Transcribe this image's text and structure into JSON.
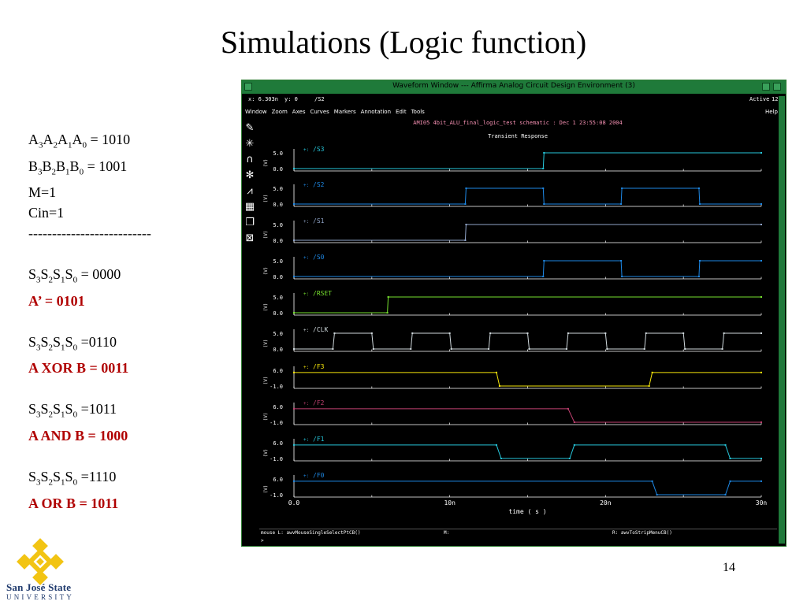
{
  "slide": {
    "title": "Simulations (Logic function)",
    "page_number": "14",
    "inputs": {
      "a_line": {
        "letters": [
          "A",
          "A",
          "A",
          "A"
        ],
        "subs": [
          "3",
          "2",
          "1",
          "0"
        ],
        "value": "= 1010"
      },
      "b_line": {
        "letters": [
          "B",
          "B",
          "B",
          "B"
        ],
        "subs": [
          "3",
          "2",
          "1",
          "0"
        ],
        "value": "= 1001"
      },
      "m_line": "M=1",
      "cin_line": "Cin=1",
      "divider": "--------------------------"
    },
    "cases": [
      {
        "s_subs": [
          "3",
          "2",
          "1",
          "0"
        ],
        "s_value": "= 0000",
        "result": "A’ = 0101"
      },
      {
        "s_subs": [
          "3",
          "2",
          "1",
          "0"
        ],
        "s_value": "=0110",
        "result": "A XOR B = 0011"
      },
      {
        "s_subs": [
          "3",
          "2",
          "1",
          "0"
        ],
        "s_value": "=1011",
        "result": "A AND B = 1000"
      },
      {
        "s_subs": [
          "3",
          "2",
          "1",
          "0"
        ],
        "s_value": "=1110",
        "result": "A OR B = 1011"
      }
    ],
    "logo": {
      "line1": "San José State",
      "line2": "UNIVERSITY",
      "color": "#f2c413"
    }
  },
  "window": {
    "title": "Waveform Window --- Affirma Analog Circuit Design Environment (3)",
    "info_x": "x: 6.303n",
    "info_y": "y: 0",
    "info_signal": "/S2",
    "active_label": "Active",
    "active_num": "12",
    "menu": [
      "Window",
      "Zoom",
      "Axes",
      "Curves",
      "Markers",
      "Annotation",
      "Edit",
      "Tools"
    ],
    "help": "Help",
    "tools": [
      "pen-icon",
      "crosshair-icon",
      "headphones-icon",
      "sparkle-icon",
      "waveform-icon",
      "grid-icon",
      "layers-icon",
      "delete-icon"
    ],
    "plot_title": "AMI05 4bit_ALU_final_logic_test schematic : Dec  1 23:55:08 2004",
    "plot_subtitle": "Transient Response",
    "status_left": "mouse L: awvMouseSingleSelectPtCB()",
    "status_mid": "M:",
    "status_right": "R: awvToStripMenuCB()",
    "prompt": ">",
    "colors": {
      "titlebar": "#1f7a3a",
      "bg": "#000000",
      "axis": "#ffffff"
    }
  },
  "chart_data": {
    "type": "line",
    "xlabel": "time ( s )",
    "x_ticks": [
      "0.0",
      "10n",
      "20n",
      "30n"
    ],
    "xlim": [
      0,
      30
    ],
    "x_unit": "ns",
    "series": [
      {
        "name": "/S3",
        "marker": "+:",
        "color": "#26c6da",
        "ylabels": [
          "5.0",
          "0.0"
        ],
        "ylim": [
          0,
          5
        ],
        "y_unit": "(V)",
        "points": [
          [
            0,
            0
          ],
          [
            16,
            0
          ],
          [
            16.05,
            5
          ],
          [
            30,
            5
          ]
        ]
      },
      {
        "name": "/S2",
        "marker": "+:",
        "color": "#1e88e5",
        "ylabels": [
          "5.0",
          "0.0"
        ],
        "ylim": [
          0,
          5
        ],
        "y_unit": "(V)",
        "points": [
          [
            0,
            0
          ],
          [
            11,
            0
          ],
          [
            11.05,
            5
          ],
          [
            16,
            5
          ],
          [
            16.05,
            0
          ],
          [
            21,
            0
          ],
          [
            21.05,
            5
          ],
          [
            26,
            5
          ],
          [
            26.05,
            0
          ],
          [
            30,
            0
          ]
        ]
      },
      {
        "name": "/S1",
        "marker": "+:",
        "color": "#90a4c8",
        "ylabels": [
          "5.0",
          "0.0"
        ],
        "ylim": [
          0,
          5
        ],
        "y_unit": "(V)",
        "points": [
          [
            0,
            0
          ],
          [
            11,
            0
          ],
          [
            11.05,
            5
          ],
          [
            30,
            5
          ]
        ]
      },
      {
        "name": "/S0",
        "marker": "+:",
        "color": "#1e88e5",
        "ylabels": [
          "5.0",
          "0.0"
        ],
        "ylim": [
          0,
          5
        ],
        "y_unit": "(V)",
        "points": [
          [
            0,
            0
          ],
          [
            16,
            0
          ],
          [
            16.05,
            5
          ],
          [
            21,
            5
          ],
          [
            21.05,
            0
          ],
          [
            26,
            0
          ],
          [
            26.05,
            5
          ],
          [
            30,
            5
          ]
        ]
      },
      {
        "name": "/RSET",
        "marker": "+:",
        "color": "#76e02f",
        "ylabels": [
          "5.0",
          "0.0"
        ],
        "ylim": [
          0,
          5
        ],
        "y_unit": "(V)",
        "points": [
          [
            0,
            0
          ],
          [
            6,
            0
          ],
          [
            6.05,
            5
          ],
          [
            30,
            5
          ]
        ]
      },
      {
        "name": "/CLK",
        "marker": "+:",
        "color": "#cfd8dc",
        "ylabels": [
          "5.0",
          "0.0"
        ],
        "ylim": [
          0,
          5
        ],
        "y_unit": "(V)",
        "points": [
          [
            0,
            0
          ],
          [
            2.5,
            0
          ],
          [
            2.6,
            5
          ],
          [
            5,
            5
          ],
          [
            5.1,
            0
          ],
          [
            7.5,
            0
          ],
          [
            7.6,
            5
          ],
          [
            10,
            5
          ],
          [
            10.1,
            0
          ],
          [
            12.5,
            0
          ],
          [
            12.6,
            5
          ],
          [
            15,
            5
          ],
          [
            15.1,
            0
          ],
          [
            17.5,
            0
          ],
          [
            17.6,
            5
          ],
          [
            20,
            5
          ],
          [
            20.1,
            0
          ],
          [
            22.5,
            0
          ],
          [
            22.6,
            5
          ],
          [
            25,
            5
          ],
          [
            25.1,
            0
          ],
          [
            27.5,
            0
          ],
          [
            27.6,
            5
          ],
          [
            30,
            5
          ]
        ]
      },
      {
        "name": "/F3",
        "marker": "+:",
        "color": "#f5e50a",
        "ylabels": [
          "6.0",
          "-1.0"
        ],
        "ylim": [
          -1,
          6
        ],
        "y_unit": "(V)",
        "points": [
          [
            0,
            5
          ],
          [
            13,
            5
          ],
          [
            13.2,
            -1
          ],
          [
            22.8,
            -1
          ],
          [
            23,
            5
          ],
          [
            30,
            5
          ]
        ]
      },
      {
        "name": "/F2",
        "marker": "+:",
        "color": "#c04070",
        "ylabels": [
          "6.0",
          "-1.0"
        ],
        "ylim": [
          -1,
          6
        ],
        "y_unit": "(V)",
        "points": [
          [
            0,
            5
          ],
          [
            17.6,
            5
          ],
          [
            18,
            -1
          ],
          [
            30,
            -1
          ]
        ]
      },
      {
        "name": "/F1",
        "marker": "+:",
        "color": "#26c6da",
        "ylabels": [
          "6.0",
          "-1.0"
        ],
        "ylim": [
          -1,
          6
        ],
        "y_unit": "(V)",
        "points": [
          [
            0,
            5
          ],
          [
            13,
            5
          ],
          [
            13.3,
            -1
          ],
          [
            17.7,
            -1
          ],
          [
            18,
            5
          ],
          [
            27.7,
            5
          ],
          [
            28,
            -1
          ],
          [
            30,
            -1
          ]
        ]
      },
      {
        "name": "/F0",
        "marker": "+:",
        "color": "#1e88e5",
        "ylabels": [
          "6.0",
          "-1.0"
        ],
        "ylim": [
          -1,
          6
        ],
        "y_unit": "(V)",
        "points": [
          [
            0,
            5
          ],
          [
            23,
            5
          ],
          [
            23.3,
            -1
          ],
          [
            27.7,
            -1
          ],
          [
            28,
            5
          ],
          [
            30,
            5
          ]
        ]
      }
    ]
  }
}
